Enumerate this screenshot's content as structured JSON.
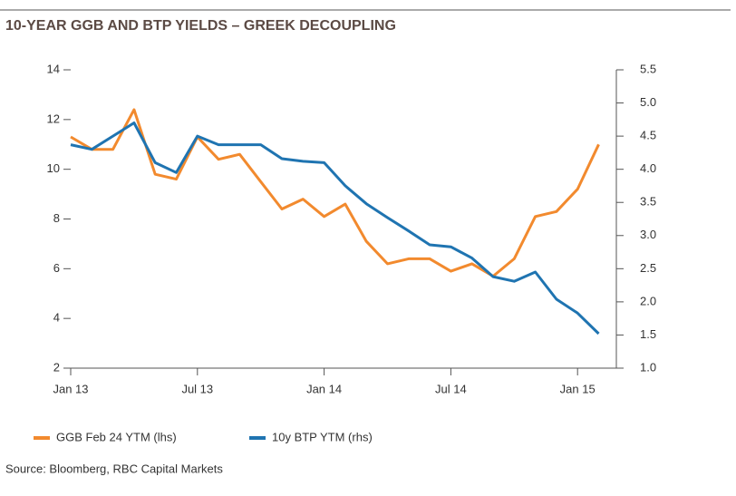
{
  "chart_data": {
    "type": "line",
    "title": "10-YEAR GGB AND BTP YIELDS – GREEK DECOUPLING",
    "source": "Source: Bloomberg, RBC Capital Markets",
    "x": [
      "2013-01",
      "2013-02",
      "2013-03",
      "2013-04",
      "2013-05",
      "2013-06",
      "2013-07",
      "2013-08",
      "2013-09",
      "2013-10",
      "2013-11",
      "2013-12",
      "2014-01",
      "2014-02",
      "2014-03",
      "2014-04",
      "2014-05",
      "2014-06",
      "2014-07",
      "2014-08",
      "2014-09",
      "2014-10",
      "2014-11",
      "2014-12",
      "2015-01",
      "2015-02"
    ],
    "xticks": [
      {
        "value": "2013-01",
        "label": "Jan 13"
      },
      {
        "value": "2013-07",
        "label": "Jul 13"
      },
      {
        "value": "2014-01",
        "label": "Jan 14"
      },
      {
        "value": "2014-07",
        "label": "Jul 14"
      },
      {
        "value": "2015-01",
        "label": "Jan 15"
      }
    ],
    "ylim": [
      2,
      14
    ],
    "yticks": [
      2,
      4,
      6,
      8,
      10,
      12,
      14
    ],
    "y2lim": [
      1.0,
      5.5
    ],
    "y2ticks": [
      {
        "value": 1,
        "label": "1.0"
      },
      1.5,
      {
        "value": 2,
        "label": "2.0"
      },
      2.5,
      {
        "value": 3,
        "label": "3.0"
      },
      3.5,
      {
        "value": 4,
        "label": "4.0"
      },
      4.5,
      {
        "value": 5,
        "label": "5.0"
      },
      5.5
    ],
    "legend": "bottom",
    "series": [
      {
        "name": "GGB Feb 24 YTM (lhs)",
        "color": "#f28a2e",
        "values": [
          11.3,
          10.8,
          10.8,
          12.4,
          9.8,
          9.6,
          11.3,
          10.4,
          10.6,
          9.5,
          8.4,
          8.8,
          8.1,
          8.6,
          7.1,
          6.2,
          6.4,
          6.4,
          5.9,
          6.2,
          5.7,
          6.4,
          8.1,
          8.3,
          9.2,
          11.0
        ]
      },
      {
        "name": "10y BTP YTM (rhs)",
        "color": "#1f74b1",
        "axis": "y2",
        "values": [
          4.37,
          4.3,
          4.5,
          4.7,
          4.1,
          3.95,
          4.5,
          4.37,
          4.37,
          4.37,
          4.16,
          4.12,
          4.1,
          3.75,
          3.48,
          3.27,
          3.07,
          2.86,
          2.83,
          2.66,
          2.38,
          2.31,
          2.45,
          2.04,
          1.83,
          1.52
        ]
      }
    ]
  }
}
